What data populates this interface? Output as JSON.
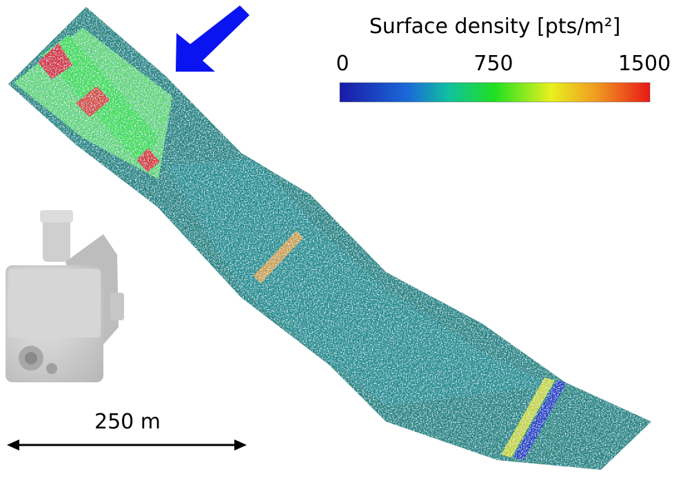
{
  "colorbar": {
    "title": "Surface density [pts/m²]",
    "ticks": [
      0,
      750,
      1500
    ]
  },
  "scale_bar": {
    "label": "250 m"
  }
}
